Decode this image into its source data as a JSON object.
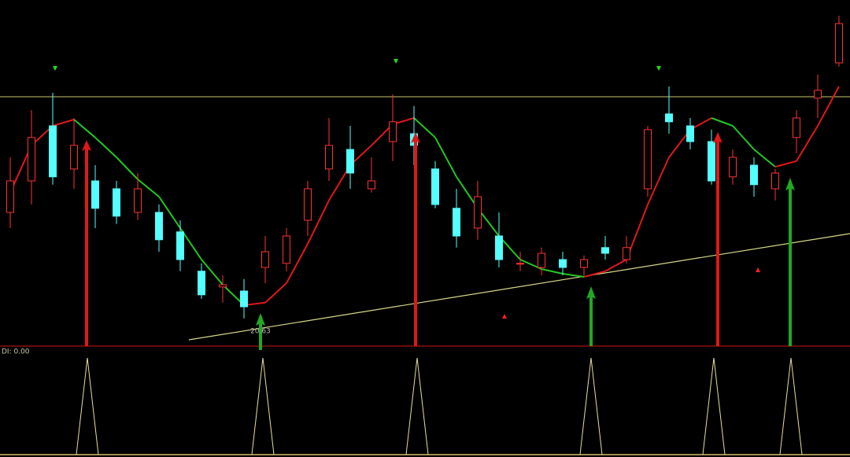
{
  "chart_data": {
    "type": "candlestick",
    "up_color": "#ff3232",
    "down_color": "#54ffff",
    "ma_up_color": "#e01818",
    "ma_down_color": "#22c822",
    "ylim": [
      19.75,
      30.75
    ],
    "open": [
      24,
      25,
      26.75,
      25.38,
      25,
      24.75,
      24,
      24,
      23.38,
      22.13,
      21.63,
      21.5,
      22.25,
      22.38,
      23.75,
      25.38,
      26,
      24.75,
      26.25,
      26.5,
      25.38,
      24.13,
      23.5,
      23.25,
      22.38,
      22.25,
      22.5,
      22.25,
      22.88,
      22.5,
      24.75,
      27.13,
      26.75,
      26.25,
      25.13,
      25.5,
      24.75,
      26.38,
      27.63,
      28.75
    ],
    "high": [
      25.75,
      27.25,
      27.8,
      27,
      25.5,
      25,
      25.25,
      24.25,
      23.75,
      22.38,
      22,
      21.88,
      23.25,
      23.5,
      25,
      27,
      26.75,
      25.75,
      27.75,
      27.38,
      25.63,
      24.75,
      25,
      24,
      22.75,
      22.88,
      22.75,
      22.63,
      23.25,
      23.25,
      26.75,
      28,
      27,
      26.63,
      26,
      25.75,
      25.38,
      27.25,
      28.38,
      30.25
    ],
    "low": [
      23.5,
      24.25,
      24.88,
      24.75,
      23.5,
      23.63,
      23.75,
      22.75,
      22.13,
      21.25,
      21.13,
      20.63,
      21.75,
      22.13,
      23.25,
      25,
      24.75,
      24.63,
      25.63,
      25.5,
      24.13,
      22.88,
      23.13,
      22.25,
      22.13,
      22,
      22,
      22,
      22.5,
      22.38,
      24.5,
      26.5,
      26,
      24.88,
      24.88,
      24.5,
      24.38,
      25.88,
      27,
      28.63
    ],
    "close": [
      25,
      26.38,
      25.13,
      26.13,
      24.13,
      23.88,
      24.75,
      23.13,
      22.5,
      21.38,
      21.7,
      21,
      22.75,
      23.25,
      24.75,
      26.13,
      25.25,
      25,
      26.88,
      26.13,
      24.25,
      23.25,
      24.5,
      22.5,
      22.38,
      22.7,
      22.25,
      22.5,
      22.7,
      22.88,
      26.63,
      26.88,
      26.25,
      25,
      25.75,
      24.88,
      25.25,
      27,
      27.88,
      30
    ],
    "ma": [
      24.63,
      26.13,
      26.75,
      26.95,
      26.38,
      25.75,
      25.05,
      24.5,
      23.5,
      22.5,
      21.7,
      21.05,
      21.13,
      21.75,
      23,
      24.38,
      25.5,
      26.13,
      26.8,
      27,
      26.38,
      25.13,
      24.13,
      23.25,
      22.5,
      22.2,
      22.05,
      21.95,
      22.13,
      22.5,
      24.25,
      25.75,
      26.63,
      27,
      26.75,
      26,
      25.45,
      25.63,
      26.75,
      28
    ],
    "low_annotation_index": 11,
    "indicator_label": "DI: 0.00"
  }
}
